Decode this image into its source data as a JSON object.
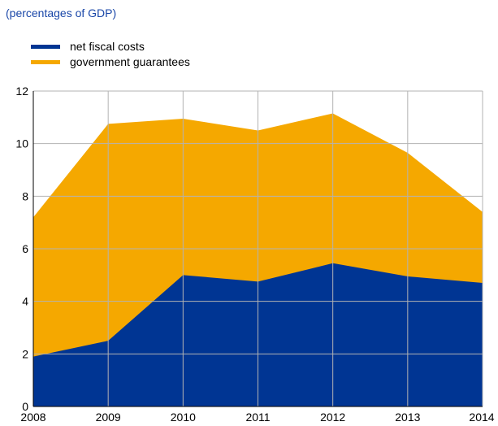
{
  "chart_data": {
    "type": "area",
    "subtitle": "(percentages of GDP)",
    "x": [
      "2008",
      "2009",
      "2010",
      "2011",
      "2012",
      "2013",
      "2014"
    ],
    "series": [
      {
        "name": "net fiscal costs",
        "color": "#003593",
        "values": [
          1.9,
          2.5,
          5.0,
          4.75,
          5.45,
          4.95,
          4.7
        ]
      },
      {
        "name": "government guarantees",
        "color": "#f5a800",
        "values": [
          7.2,
          10.75,
          10.95,
          10.5,
          11.15,
          9.65,
          7.4
        ]
      }
    ],
    "stacked": false,
    "ylim": [
      0,
      12
    ],
    "yticks": [
      0,
      2,
      4,
      6,
      8,
      10,
      12
    ],
    "grid": true,
    "legend_position": "top-left"
  }
}
